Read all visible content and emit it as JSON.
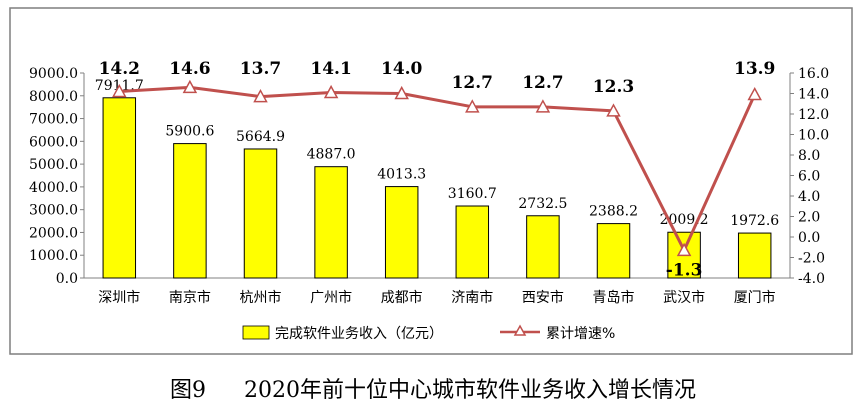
{
  "chart_data": {
    "type": "bar+line",
    "categories": [
      "深圳市",
      "南京市",
      "杭州市",
      "广州市",
      "成都市",
      "济南市",
      "西安市",
      "青岛市",
      "武汉市",
      "厦门市"
    ],
    "series": [
      {
        "name": "完成软件业务收入（亿元）",
        "type": "bar",
        "axis": "left",
        "values": [
          7911.7,
          5900.6,
          5664.9,
          4887.0,
          4013.3,
          3160.7,
          2732.5,
          2388.2,
          2009.2,
          1972.6
        ],
        "labels": [
          "7911.7",
          "5900.6",
          "5664.9",
          "4887.0",
          "4013.3",
          "3160.7",
          "2732.5",
          "2388.2",
          "2009.2",
          "1972.6"
        ],
        "color": "#ffff00"
      },
      {
        "name": "累计增速%",
        "type": "line",
        "axis": "right",
        "values": [
          14.2,
          14.6,
          13.7,
          14.1,
          14.0,
          12.7,
          12.7,
          12.3,
          -1.3,
          13.9
        ],
        "labels": [
          "14.2",
          "14.6",
          "13.7",
          "14.1",
          "14.0",
          "12.7",
          "12.7",
          "12.3",
          "-1.3",
          "13.9"
        ],
        "color": "#c0504d"
      }
    ],
    "y_left": {
      "ylim": [
        0,
        9000
      ],
      "ticks": [
        "9000.0",
        "8000.0",
        "7000.0",
        "6000.0",
        "5000.0",
        "4000.0",
        "3000.0",
        "2000.0",
        "1000.0",
        "0.0"
      ]
    },
    "y_right": {
      "ylim": [
        -4,
        16
      ],
      "ticks": [
        "16.0",
        "14.0",
        "12.0",
        "10.0",
        "8.0",
        "6.0",
        "4.0",
        "2.0",
        "0.0",
        "-2.0",
        "-4.0"
      ]
    },
    "grid": false,
    "legend": "bottom"
  },
  "caption": {
    "figure_no": "图9",
    "title": "2020年前十位中心城市软件业务收入增长情况"
  },
  "colors": {
    "bar_fill": "#ffff00",
    "bar_stroke": "#000000",
    "line": "#c0504d",
    "frame": "#7f7f7f"
  }
}
